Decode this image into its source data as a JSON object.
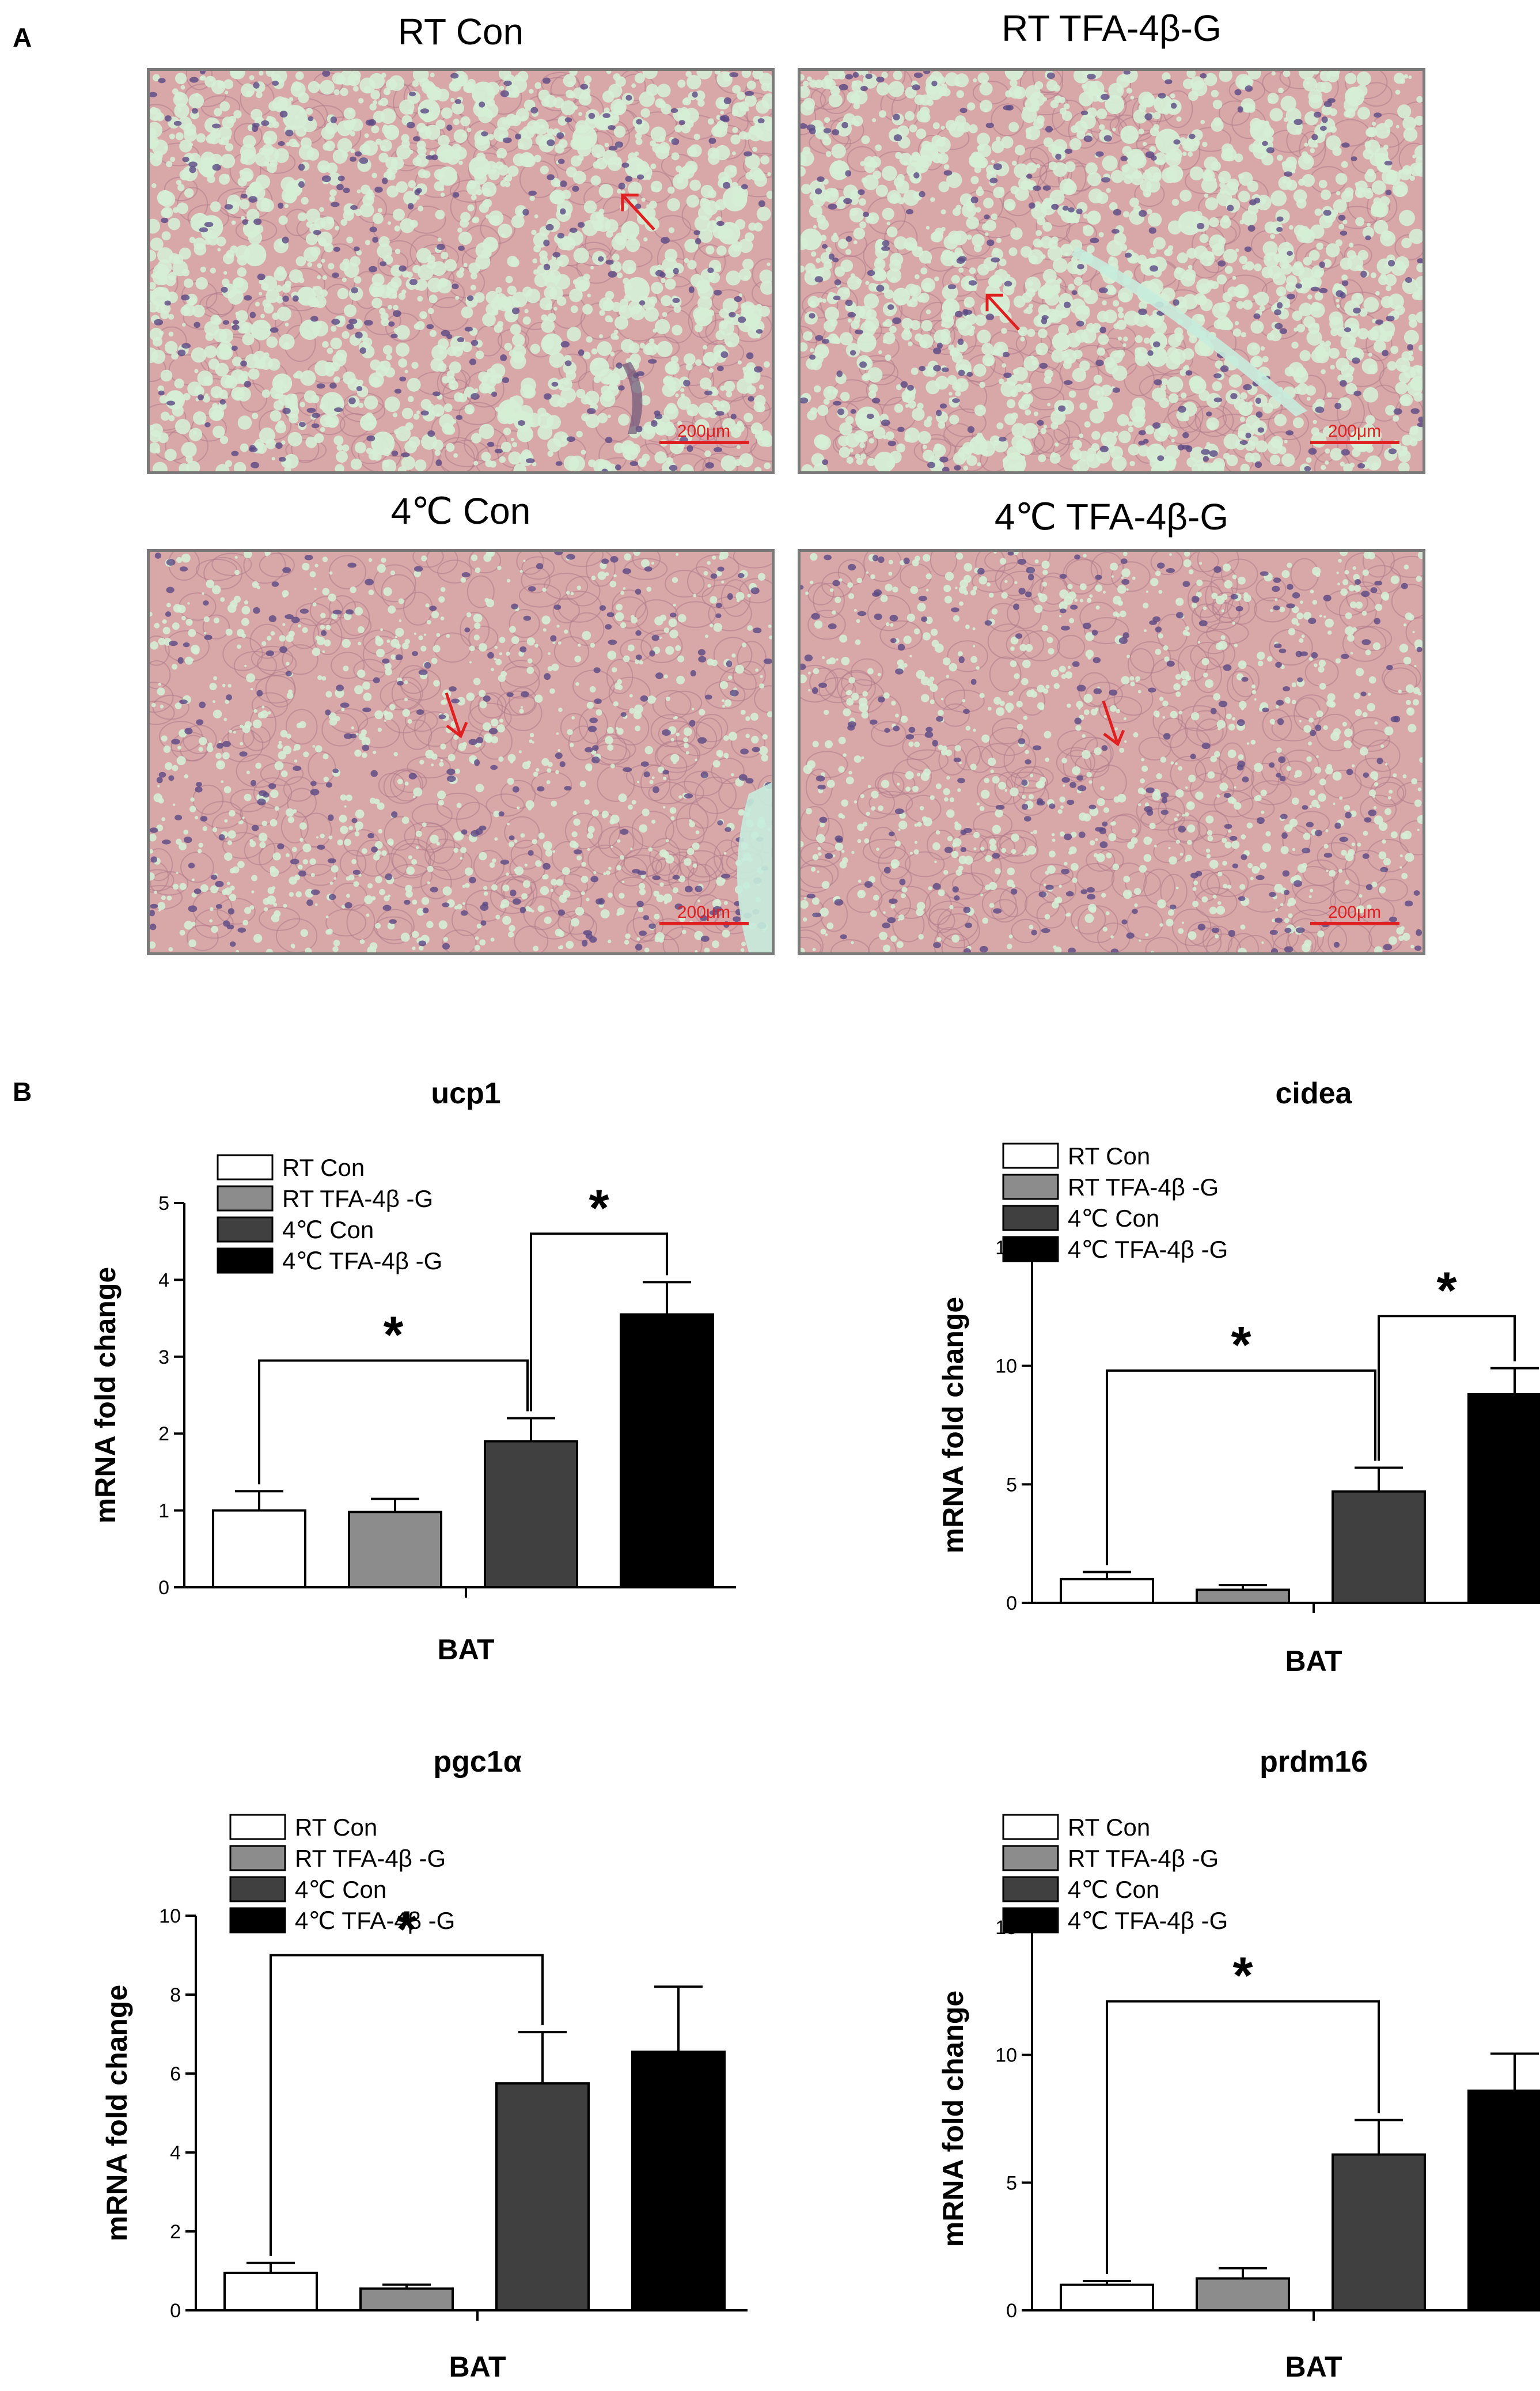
{
  "panel_a": {
    "label": "A",
    "images": [
      {
        "caption": "RT Con",
        "scale_bar": "200μm"
      },
      {
        "caption": "RT TFA-4β-G",
        "scale_bar": "200μm"
      },
      {
        "caption": "4℃ Con",
        "scale_bar": "200μm"
      },
      {
        "caption": "4℃ TFA-4β-G",
        "scale_bar": "200μm"
      }
    ],
    "colors": {
      "tissue": "#d8a7a8",
      "droplet": "#d5eed5",
      "nucleus": "#5a4a84",
      "arrow": "#e02020",
      "frame": "#7a7a7a"
    }
  },
  "panel_b": {
    "label": "B"
  },
  "colors": {
    "series": [
      "#ffffff",
      "#8c8c8c",
      "#404040",
      "#000000"
    ]
  },
  "chart_data": [
    {
      "type": "bar",
      "title": "ucp1",
      "xlabel": "BAT",
      "ylabel": "mRNA fold change",
      "categories": [
        "RT Con",
        "RT TFA-4β -G",
        "4℃  Con",
        "4℃  TFA-4β -G"
      ],
      "legend": [
        "RT Con",
        "RT TFA-4β -G",
        "4℃  Con",
        "4℃  TFA-4β -G"
      ],
      "values": [
        1.0,
        0.98,
        1.9,
        3.55
      ],
      "errors": [
        0.25,
        0.17,
        0.3,
        0.42
      ],
      "ylim": [
        0,
        5
      ],
      "yticks": [
        "0",
        "1",
        "2",
        "3",
        "4",
        "5"
      ],
      "significance": [
        {
          "from": 0,
          "to": 2,
          "label": "*"
        },
        {
          "from": 2,
          "to": 3,
          "label": "*"
        }
      ],
      "legend_position": "top-left"
    },
    {
      "type": "bar",
      "title": "cidea",
      "xlabel": "BAT",
      "ylabel": "mRNA fold change",
      "categories": [
        "RT Con",
        "RT TFA-4β -G",
        "4℃  Con",
        "4℃  TFA-4β -G"
      ],
      "legend": [
        "RT Con",
        "RT TFA-4β -G",
        "4℃  Con",
        "4℃  TFA-4β -G"
      ],
      "values": [
        1.0,
        0.55,
        4.7,
        8.8
      ],
      "errors": [
        0.3,
        0.2,
        1.0,
        1.1
      ],
      "ylim": [
        0,
        15
      ],
      "yticks": [
        "0",
        "5",
        "10",
        "15"
      ],
      "significance": [
        {
          "from": 0,
          "to": 2,
          "label": "*"
        },
        {
          "from": 2,
          "to": 3,
          "label": "*"
        }
      ],
      "legend_position": "top-left"
    },
    {
      "type": "bar",
      "title": "pgc1α",
      "xlabel": "BAT",
      "ylabel": "mRNA fold change",
      "categories": [
        "RT Con",
        "RT TFA-4β -G",
        "4℃  Con",
        "4℃  TFA-4β -G"
      ],
      "legend": [
        "RT Con",
        "RT TFA-4β -G",
        "4℃  Con",
        "4℃  TFA-4β -G"
      ],
      "values": [
        0.95,
        0.55,
        5.75,
        6.55
      ],
      "errors": [
        0.25,
        0.1,
        1.3,
        1.65
      ],
      "ylim": [
        0,
        10
      ],
      "yticks": [
        "0",
        "2",
        "4",
        "6",
        "8",
        "10"
      ],
      "significance": [
        {
          "from": 0,
          "to": 2,
          "label": "*"
        }
      ],
      "legend_position": "top-left"
    },
    {
      "type": "bar",
      "title": "prdm16",
      "xlabel": "BAT",
      "ylabel": "mRNA fold change",
      "categories": [
        "RT Con",
        "RT TFA-4β -G",
        "4℃  Con",
        "4℃  TFA-4β -G"
      ],
      "legend": [
        "RT Con",
        "RT TFA-4β -G",
        "4℃  Con",
        "4℃  TFA-4β -G"
      ],
      "values": [
        1.0,
        1.25,
        6.1,
        8.6
      ],
      "errors": [
        0.15,
        0.4,
        1.35,
        1.45
      ],
      "ylim": [
        0,
        15
      ],
      "yticks": [
        "0",
        "5",
        "10",
        "15"
      ],
      "significance": [
        {
          "from": 0,
          "to": 2,
          "label": "*"
        }
      ],
      "legend_position": "top-left"
    }
  ]
}
